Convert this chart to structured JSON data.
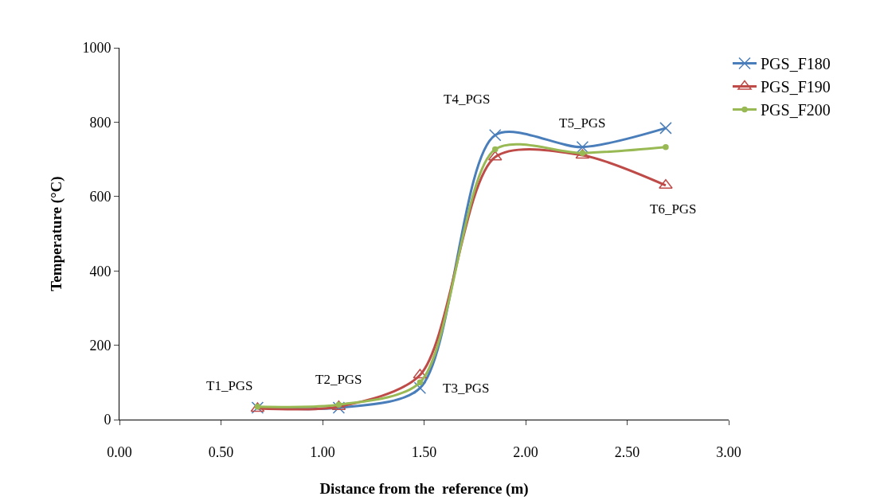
{
  "chart_data": {
    "type": "line",
    "xlabel": "Distance from the  reference (m)",
    "ylabel": "Temperature (°C)",
    "x": [
      0.68,
      1.08,
      1.48,
      1.85,
      2.28,
      2.69
    ],
    "series": [
      {
        "name": "PGS_F180",
        "color": "#4a7ebb",
        "marker": "cross",
        "values": [
          32,
          32,
          85,
          765,
          733,
          784
        ]
      },
      {
        "name": "PGS_F190",
        "color": "#be4b48",
        "marker": "triangle",
        "values": [
          30,
          35,
          120,
          706,
          711,
          630
        ]
      },
      {
        "name": "PGS_F200",
        "color": "#98b954",
        "marker": "circle",
        "values": [
          35,
          40,
          100,
          727,
          717,
          733
        ]
      }
    ],
    "annotations": [
      {
        "text": "T1_PGS",
        "x": 0.68,
        "y": 32
      },
      {
        "text": "T2_PGS",
        "x": 1.08,
        "y": 32
      },
      {
        "text": "T3_PGS",
        "x": 1.48,
        "y": 85
      },
      {
        "text": "T4_PGS",
        "x": 1.85,
        "y": 765
      },
      {
        "text": "T5_PGS",
        "x": 2.28,
        "y": 733
      },
      {
        "text": "T6_PGS",
        "x": 2.69,
        "y": 630
      }
    ],
    "xlim": [
      0,
      3
    ],
    "xticks": [
      {
        "value": 0,
        "label": "0.00"
      },
      {
        "value": 0.5,
        "label": "0.50"
      },
      {
        "value": 1,
        "label": "1.00"
      },
      {
        "value": 1.5,
        "label": "1.50"
      },
      {
        "value": 2,
        "label": "2.00"
      },
      {
        "value": 2.5,
        "label": "2.50"
      },
      {
        "value": 3,
        "label": "3.00"
      }
    ],
    "ylim": [
      0,
      1000
    ],
    "yticks": [
      0,
      200,
      400,
      600,
      800,
      1000
    ],
    "legend": "top right",
    "line_style": "solid"
  }
}
